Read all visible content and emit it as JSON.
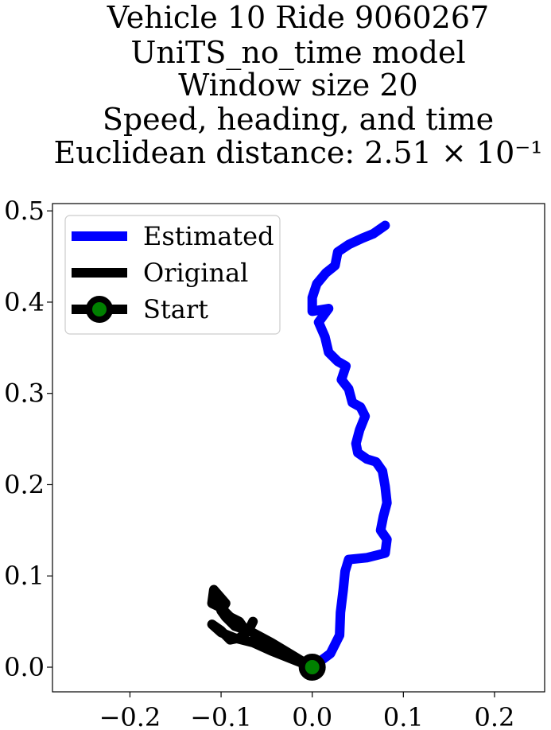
{
  "chart_data": {
    "type": "line",
    "title_lines": [
      "Vehicle 10 Ride 9060267",
      "UniTS_no_time model",
      "Window size 20",
      "Speed, heading, and time",
      "Euclidean distance: 2.51 × 10⁻¹"
    ],
    "xlabel": "",
    "ylabel": "",
    "xlim": [
      -0.285,
      0.255
    ],
    "ylim": [
      -0.027,
      0.508
    ],
    "x_ticks": [
      -0.2,
      -0.1,
      0.0,
      0.1,
      0.2
    ],
    "x_tick_labels": [
      "−0.2",
      "−0.1",
      "0.0",
      "0.1",
      "0.2"
    ],
    "y_ticks": [
      0.0,
      0.1,
      0.2,
      0.3,
      0.4,
      0.5
    ],
    "y_tick_labels": [
      "0.0",
      "0.1",
      "0.2",
      "0.3",
      "0.4",
      "0.5"
    ],
    "grid": false,
    "legend_position": "upper-left",
    "colors": {
      "estimated": "#0000ff",
      "original": "#000000",
      "start_marker_fill": "#008000"
    },
    "series": [
      {
        "name": "Estimated",
        "color": "#0000ff",
        "points": [
          [
            0.0,
            0.0
          ],
          [
            0.02,
            0.015
          ],
          [
            0.03,
            0.035
          ],
          [
            0.031,
            0.06
          ],
          [
            0.034,
            0.085
          ],
          [
            0.036,
            0.105
          ],
          [
            0.04,
            0.118
          ],
          [
            0.06,
            0.12
          ],
          [
            0.08,
            0.125
          ],
          [
            0.082,
            0.14
          ],
          [
            0.075,
            0.15
          ],
          [
            0.078,
            0.165
          ],
          [
            0.082,
            0.18
          ],
          [
            0.08,
            0.198
          ],
          [
            0.077,
            0.215
          ],
          [
            0.07,
            0.225
          ],
          [
            0.06,
            0.228
          ],
          [
            0.05,
            0.235
          ],
          [
            0.048,
            0.245
          ],
          [
            0.052,
            0.26
          ],
          [
            0.058,
            0.275
          ],
          [
            0.053,
            0.285
          ],
          [
            0.044,
            0.29
          ],
          [
            0.04,
            0.305
          ],
          [
            0.032,
            0.315
          ],
          [
            0.037,
            0.33
          ],
          [
            0.028,
            0.335
          ],
          [
            0.018,
            0.345
          ],
          [
            0.014,
            0.362
          ],
          [
            0.007,
            0.378
          ],
          [
            0.018,
            0.393
          ],
          [
            0.0,
            0.39
          ],
          [
            0.0,
            0.405
          ],
          [
            0.005,
            0.42
          ],
          [
            0.015,
            0.432
          ],
          [
            0.025,
            0.44
          ],
          [
            0.028,
            0.455
          ],
          [
            0.04,
            0.463
          ],
          [
            0.055,
            0.47
          ],
          [
            0.067,
            0.475
          ],
          [
            0.08,
            0.484
          ]
        ]
      },
      {
        "name": "Original",
        "color": "#000000",
        "points": [
          [
            0.0,
            0.0
          ],
          [
            -0.025,
            0.01
          ],
          [
            -0.045,
            0.018
          ],
          [
            -0.065,
            0.027
          ],
          [
            -0.085,
            0.032
          ],
          [
            -0.1,
            0.038
          ],
          [
            -0.11,
            0.047
          ],
          [
            -0.1,
            0.04
          ],
          [
            -0.09,
            0.03
          ],
          [
            -0.08,
            0.032
          ],
          [
            -0.07,
            0.04
          ],
          [
            -0.065,
            0.05
          ],
          [
            -0.07,
            0.04
          ],
          [
            -0.085,
            0.045
          ],
          [
            -0.095,
            0.055
          ],
          [
            -0.1,
            0.062
          ],
          [
            -0.095,
            0.07
          ],
          [
            -0.108,
            0.085
          ],
          [
            -0.11,
            0.07
          ],
          [
            -0.1,
            0.065
          ],
          [
            -0.09,
            0.055
          ],
          [
            -0.08,
            0.05
          ],
          [
            -0.075,
            0.043
          ],
          [
            -0.06,
            0.035
          ],
          [
            -0.045,
            0.027
          ],
          [
            -0.025,
            0.015
          ],
          [
            0.0,
            0.0
          ]
        ]
      }
    ],
    "start_point": {
      "name": "Start",
      "x": 0.0,
      "y": 0.0
    },
    "legend": [
      {
        "label": "Estimated",
        "kind": "line",
        "color": "#0000ff"
      },
      {
        "label": "Original",
        "kind": "line",
        "color": "#000000"
      },
      {
        "label": "Start",
        "kind": "marker",
        "color": "#000000",
        "marker_fill": "#008000"
      }
    ]
  }
}
